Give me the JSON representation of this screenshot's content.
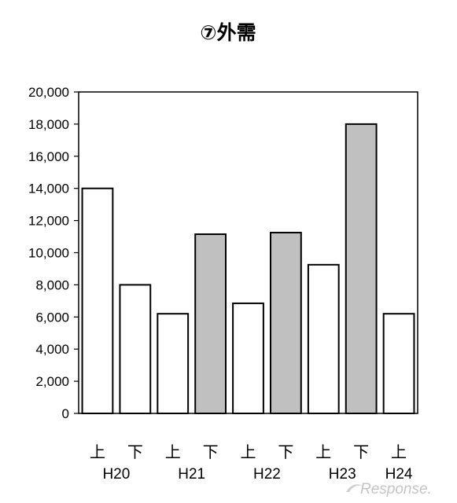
{
  "chart_data": {
    "type": "bar",
    "title": "⑦外需",
    "ylim": [
      0,
      20000
    ],
    "yticks": [
      "20,000",
      "18,000",
      "16,000",
      "14,000",
      "12,000",
      "10,000",
      "8,000",
      "6,000",
      "4,000",
      "2,000",
      "0"
    ],
    "categories": [
      "上",
      "下",
      "上",
      "下",
      "上",
      "下",
      "上",
      "下",
      "上"
    ],
    "years": [
      "H20",
      "H21",
      "H22",
      "H23",
      "H24"
    ],
    "values": [
      14000,
      8000,
      6200,
      11150,
      6850,
      11250,
      9250,
      18000,
      6200
    ],
    "shaded": [
      false,
      false,
      false,
      true,
      false,
      true,
      false,
      true,
      false
    ],
    "colors": {
      "plain": "#ffffff",
      "shaded": "#c0c0c0",
      "stroke": "#000000"
    },
    "grid": false
  },
  "watermark": "Response."
}
